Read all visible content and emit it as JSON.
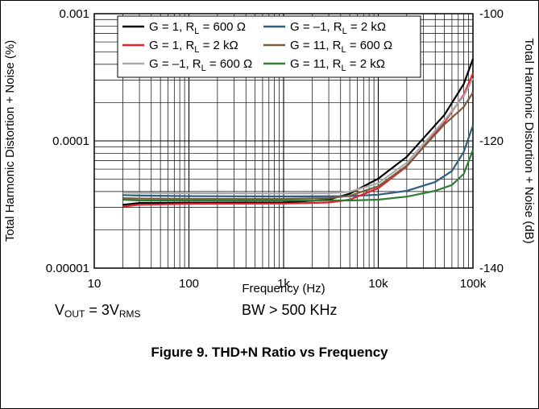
{
  "chart_data": {
    "type": "line",
    "title": "",
    "xlabel": "Frequency (Hz)",
    "ylabel": "Total Harmonic Distortion + Noise (%)",
    "ylabel_right": "Total Harmonic Distortion + Noise (dB)",
    "x_scale": "log",
    "y_scale": "log",
    "xlim": [
      10,
      100000
    ],
    "ylim": [
      1e-05,
      0.001
    ],
    "y2lim": [
      -140,
      -100
    ],
    "x_ticks": [
      {
        "value": 10,
        "label": "10"
      },
      {
        "value": 100,
        "label": "100"
      },
      {
        "value": 1000,
        "label": "1k"
      },
      {
        "value": 10000,
        "label": "10k"
      },
      {
        "value": 100000,
        "label": "100k"
      }
    ],
    "y_ticks": [
      {
        "value": 1e-05,
        "label": "0.00001"
      },
      {
        "value": 0.0001,
        "label": "0.0001"
      },
      {
        "value": 0.001,
        "label": "0.001"
      }
    ],
    "y2_ticks": [
      {
        "value": -140,
        "label": "-140"
      },
      {
        "value": -120,
        "label": "-120"
      },
      {
        "value": -100,
        "label": "-100"
      }
    ],
    "grid": true,
    "legend_position": "top",
    "series": [
      {
        "name": "G = 1, R_L = 600 Ω",
        "color": "#000000",
        "points": [
          [
            20,
            3.15e-05
          ],
          [
            30,
            3.25e-05
          ],
          [
            100,
            3.27e-05
          ],
          [
            1000,
            3.28e-05
          ],
          [
            3000,
            3.45e-05
          ],
          [
            5000,
            3.85e-05
          ],
          [
            10000,
            5.05e-05
          ],
          [
            20000,
            7.5e-05
          ],
          [
            50000,
            0.00016
          ],
          [
            80000,
            0.00028
          ],
          [
            100000,
            0.00044
          ]
        ]
      },
      {
        "name": "G = –1, R_L = 2 kΩ",
        "color": "#2e5f7f",
        "points": [
          [
            20,
            3.75e-05
          ],
          [
            30,
            3.72e-05
          ],
          [
            100,
            3.68e-05
          ],
          [
            1000,
            3.66e-05
          ],
          [
            5000,
            3.68e-05
          ],
          [
            10000,
            3.78e-05
          ],
          [
            20000,
            4.05e-05
          ],
          [
            40000,
            4.75e-05
          ],
          [
            60000,
            5.8e-05
          ],
          [
            80000,
            8.2e-05
          ],
          [
            100000,
            0.000132
          ]
        ]
      },
      {
        "name": "G = 1, R_L = 2 kΩ",
        "color": "#e8222b",
        "points": [
          [
            20,
            3.05e-05
          ],
          [
            30,
            3.15e-05
          ],
          [
            100,
            3.2e-05
          ],
          [
            1000,
            3.22e-05
          ],
          [
            3000,
            3.28e-05
          ],
          [
            5000,
            3.45e-05
          ],
          [
            10000,
            4.25e-05
          ],
          [
            20000,
            6.3e-05
          ],
          [
            50000,
            0.00014
          ],
          [
            80000,
            0.00023
          ],
          [
            100000,
            0.00034
          ]
        ]
      },
      {
        "name": "G = 11, R_L = 600 Ω",
        "color": "#7a5c3e",
        "points": [
          [
            20,
            3.55e-05
          ],
          [
            30,
            3.52e-05
          ],
          [
            100,
            3.5e-05
          ],
          [
            1000,
            3.5e-05
          ],
          [
            3000,
            3.55e-05
          ],
          [
            5000,
            3.7e-05
          ],
          [
            10000,
            4.4e-05
          ],
          [
            20000,
            6.4e-05
          ],
          [
            50000,
            0.000135
          ],
          [
            80000,
            0.000185
          ],
          [
            100000,
            0.00024
          ]
        ]
      },
      {
        "name": "G = –1, R_L = 600 Ω",
        "color": "#aaaaaa",
        "points": [
          [
            20,
            3.92e-05
          ],
          [
            30,
            3.9e-05
          ],
          [
            100,
            3.88e-05
          ],
          [
            1000,
            3.86e-05
          ],
          [
            3000,
            3.88e-05
          ],
          [
            5000,
            3.98e-05
          ],
          [
            10000,
            4.65e-05
          ],
          [
            20000,
            6.75e-05
          ],
          [
            50000,
            0.000145
          ],
          [
            80000,
            0.000225
          ],
          [
            100000,
            0.00031
          ]
        ]
      },
      {
        "name": "G = 11, R_L = 2 kΩ",
        "color": "#2f7d32",
        "points": [
          [
            20,
            3.45e-05
          ],
          [
            30,
            3.4e-05
          ],
          [
            100,
            3.4e-05
          ],
          [
            1000,
            3.4e-05
          ],
          [
            5000,
            3.4e-05
          ],
          [
            10000,
            3.45e-05
          ],
          [
            20000,
            3.65e-05
          ],
          [
            40000,
            4.05e-05
          ],
          [
            60000,
            4.5e-05
          ],
          [
            80000,
            5.5e-05
          ],
          [
            100000,
            8.5e-05
          ]
        ]
      }
    ]
  },
  "legend": [
    {
      "label_main": "G = 1, R",
      "label_sub": "L",
      "label_rest": " = 600 Ω",
      "color": "#000000"
    },
    {
      "label_main": "G = –1, R",
      "label_sub": "L",
      "label_rest": " = 2 kΩ",
      "color": "#2e5f7f"
    },
    {
      "label_main": "G = 1, R",
      "label_sub": "L",
      "label_rest": " = 2 kΩ",
      "color": "#e8222b"
    },
    {
      "label_main": "G = 11, R",
      "label_sub": "L",
      "label_rest": " = 600 Ω",
      "color": "#7a5c3e"
    },
    {
      "label_main": "G = –1, R",
      "label_sub": "L",
      "label_rest": " = 600 Ω",
      "color": "#aaaaaa"
    },
    {
      "label_main": "G = 11, R",
      "label_sub": "L",
      "label_rest": " = 2 kΩ",
      "color": "#2f7d32"
    }
  ],
  "notes": {
    "vout_main": "V",
    "vout_sub": "OUT",
    "vout_mid": " = 3V",
    "vout_sub2": "RMS",
    "bw": "BW > 500 KHz"
  },
  "caption": "Figure 9. THD+N Ratio vs Frequency"
}
